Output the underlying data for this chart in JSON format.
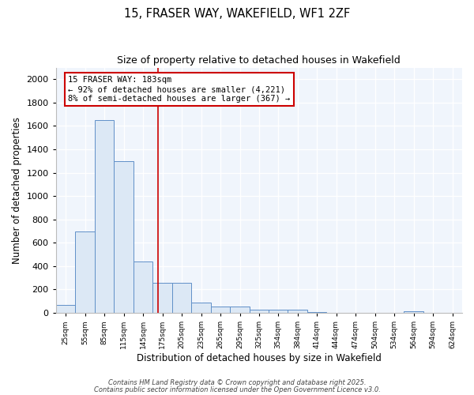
{
  "title1": "15, FRASER WAY, WAKEFIELD, WF1 2ZF",
  "title2": "Size of property relative to detached houses in Wakefield",
  "xlabel": "Distribution of detached houses by size in Wakefield",
  "ylabel": "Number of detached properties",
  "bar_color": "#dce8f5",
  "bar_edge_color": "#6090c8",
  "plot_bg_color": "#f0f5fc",
  "fig_bg_color": "#ffffff",
  "grid_color": "#ffffff",
  "bins_left": [
    25,
    55,
    85,
    115,
    145,
    175,
    205,
    235,
    265,
    295,
    325,
    354,
    384,
    414,
    444,
    474,
    504,
    534,
    564,
    594,
    624
  ],
  "bin_width": 30,
  "heights": [
    70,
    700,
    1650,
    1300,
    440,
    255,
    255,
    90,
    55,
    55,
    25,
    25,
    25,
    5,
    0,
    0,
    0,
    0,
    15,
    0,
    0
  ],
  "vline_x": 183,
  "vline_color": "#cc0000",
  "ylim": [
    0,
    2100
  ],
  "yticks": [
    0,
    200,
    400,
    600,
    800,
    1000,
    1200,
    1400,
    1600,
    1800,
    2000
  ],
  "annotation_line1": "15 FRASER WAY: 183sqm",
  "annotation_line2": "← 92% of detached houses are smaller (4,221)",
  "annotation_line3": "8% of semi-detached houses are larger (367) →",
  "annotation_box_color": "#ffffff",
  "annotation_border_color": "#cc0000",
  "tick_labels": [
    "25sqm",
    "55sqm",
    "85sqm",
    "115sqm",
    "145sqm",
    "175sqm",
    "205sqm",
    "235sqm",
    "265sqm",
    "295sqm",
    "325sqm",
    "354sqm",
    "384sqm",
    "414sqm",
    "444sqm",
    "474sqm",
    "504sqm",
    "534sqm",
    "564sqm",
    "594sqm",
    "624sqm"
  ],
  "footer1": "Contains HM Land Registry data © Crown copyright and database right 2025.",
  "footer2": "Contains public sector information licensed under the Open Government Licence v3.0."
}
